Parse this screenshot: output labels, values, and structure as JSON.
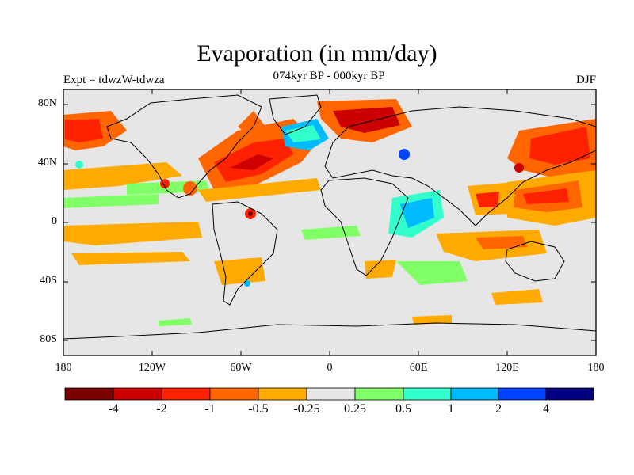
{
  "title": "Evaporation (in mm/day)",
  "left_label": "Expt = tdwzW-tdwza",
  "center_label": "074kyr BP - 000kyr BP",
  "right_label": "DJF",
  "axes": {
    "lat_ticks": [
      "80N",
      "40N",
      "0",
      "40S",
      "80S"
    ],
    "lat_values": [
      80,
      40,
      0,
      -40,
      -80
    ],
    "lon_ticks": [
      "180",
      "120W",
      "60W",
      "0",
      "60E",
      "120E",
      "180"
    ],
    "lon_values": [
      -180,
      -120,
      -60,
      0,
      60,
      120,
      180
    ],
    "lon_range": [
      -180,
      180
    ],
    "lat_range": [
      -90,
      90
    ]
  },
  "colorbar": {
    "colors": [
      "#7a0000",
      "#cc0000",
      "#ff2200",
      "#ff6600",
      "#ffaa00",
      "#e6e6e6",
      "#80ff66",
      "#33ffcc",
      "#00bbff",
      "#0044ff",
      "#000080"
    ],
    "labels": [
      "-4",
      "-2",
      "-1",
      "-0.5",
      "-0.25",
      "0.25",
      "0.5",
      "1",
      "2",
      "4"
    ]
  },
  "colors": {
    "land_and_neutral": "#e6e6e6",
    "coastline": "#000000"
  }
}
